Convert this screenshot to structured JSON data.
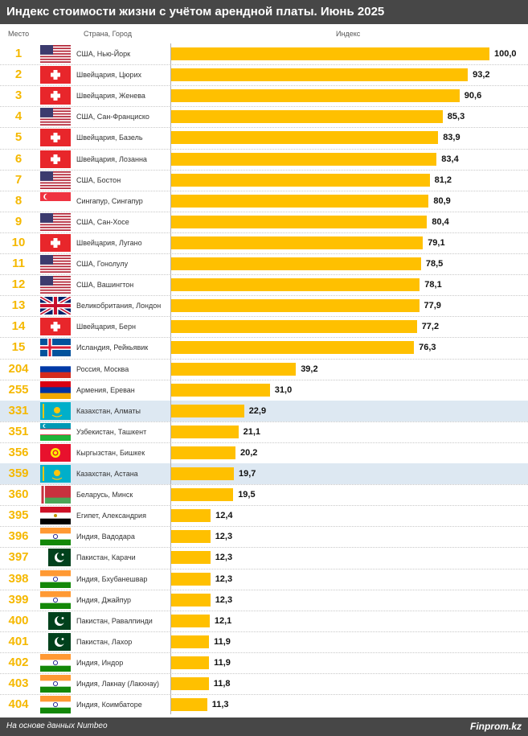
{
  "title": "Индекс стоимости жизни с учётом арендной платы. Июнь 2025",
  "headers": {
    "rank": "Место",
    "city": "Страна, Город",
    "index": "Индекс"
  },
  "footer": {
    "source": "На основе данных Numbeo",
    "brand": "Finprom.kz"
  },
  "colors": {
    "bar": "#ffc000",
    "rank": "#f5b800",
    "highlight": "#dde8f2",
    "header_bg": "#474747"
  },
  "chart_data": {
    "type": "bar",
    "orientation": "horizontal",
    "xlim": [
      0,
      100
    ],
    "rows": [
      {
        "rank": "1",
        "city": "США, Нью-Йорк",
        "value": 100.0,
        "label": "100,0",
        "flag": "usa-flag-icon"
      },
      {
        "rank": "2",
        "city": "Швейцария, Цюрих",
        "value": 93.2,
        "label": "93,2",
        "flag": "switzerland-flag-icon"
      },
      {
        "rank": "3",
        "city": "Швейцария, Женева",
        "value": 90.6,
        "label": "90,6",
        "flag": "switzerland-flag-icon"
      },
      {
        "rank": "4",
        "city": "США, Сан-Франциско",
        "value": 85.3,
        "label": "85,3",
        "flag": "usa-flag-icon"
      },
      {
        "rank": "5",
        "city": "Швейцария, Базель",
        "value": 83.9,
        "label": "83,9",
        "flag": "switzerland-flag-icon"
      },
      {
        "rank": "6",
        "city": "Швейцария, Лозанна",
        "value": 83.4,
        "label": "83,4",
        "flag": "switzerland-flag-icon"
      },
      {
        "rank": "7",
        "city": "США, Бостон",
        "value": 81.2,
        "label": "81,2",
        "flag": "usa-flag-icon"
      },
      {
        "rank": "8",
        "city": "Сингапур, Сингапур",
        "value": 80.9,
        "label": "80,9",
        "flag": "singapore-flag-icon"
      },
      {
        "rank": "9",
        "city": "США, Сан-Хосе",
        "value": 80.4,
        "label": "80,4",
        "flag": "usa-flag-icon"
      },
      {
        "rank": "10",
        "city": "Швейцария, Лугано",
        "value": 79.1,
        "label": "79,1",
        "flag": "switzerland-flag-icon"
      },
      {
        "rank": "11",
        "city": "США, Гонолулу",
        "value": 78.5,
        "label": "78,5",
        "flag": "usa-flag-icon"
      },
      {
        "rank": "12",
        "city": "США, Вашингтон",
        "value": 78.1,
        "label": "78,1",
        "flag": "usa-flag-icon"
      },
      {
        "rank": "13",
        "city": "Великобритания, Лондон",
        "value": 77.9,
        "label": "77,9",
        "flag": "uk-flag-icon"
      },
      {
        "rank": "14",
        "city": "Швейцария, Берн",
        "value": 77.2,
        "label": "77,2",
        "flag": "switzerland-flag-icon"
      },
      {
        "rank": "15",
        "city": "Исландия, Рейкьявик",
        "value": 76.3,
        "label": "76,3",
        "flag": "iceland-flag-icon"
      },
      {
        "rank": "204",
        "city": "Россия, Москва",
        "value": 39.2,
        "label": "39,2",
        "flag": "russia-flag-icon"
      },
      {
        "rank": "255",
        "city": "Армения, Ереван",
        "value": 31.0,
        "label": "31,0",
        "flag": "armenia-flag-icon"
      },
      {
        "rank": "331",
        "city": "Казахстан, Алматы",
        "value": 22.9,
        "label": "22,9",
        "flag": "kazakhstan-flag-icon",
        "highlight": true
      },
      {
        "rank": "351",
        "city": "Узбекистан, Ташкент",
        "value": 21.1,
        "label": "21,1",
        "flag": "uzbekistan-flag-icon"
      },
      {
        "rank": "356",
        "city": "Кыргызстан, Бишкек",
        "value": 20.2,
        "label": "20,2",
        "flag": "kyrgyzstan-flag-icon"
      },
      {
        "rank": "359",
        "city": "Казахстан, Астана",
        "value": 19.7,
        "label": "19,7",
        "flag": "kazakhstan-flag-icon",
        "highlight": true
      },
      {
        "rank": "360",
        "city": "Беларусь, Минск",
        "value": 19.5,
        "label": "19,5",
        "flag": "belarus-flag-icon"
      },
      {
        "rank": "395",
        "city": "Египет, Александрия",
        "value": 12.4,
        "label": "12,4",
        "flag": "egypt-flag-icon"
      },
      {
        "rank": "396",
        "city": "Индия, Вадодара",
        "value": 12.3,
        "label": "12,3",
        "flag": "india-flag-icon"
      },
      {
        "rank": "397",
        "city": "Пакистан, Карачи",
        "value": 12.3,
        "label": "12,3",
        "flag": "pakistan-flag-icon"
      },
      {
        "rank": "398",
        "city": "Индия, Бхубанешвар",
        "value": 12.3,
        "label": "12,3",
        "flag": "india-flag-icon"
      },
      {
        "rank": "399",
        "city": "Индия, Джайпур",
        "value": 12.3,
        "label": "12,3",
        "flag": "india-flag-icon"
      },
      {
        "rank": "400",
        "city": "Пакистан, Равалпинди",
        "value": 12.1,
        "label": "12,1",
        "flag": "pakistan-flag-icon"
      },
      {
        "rank": "401",
        "city": "Пакистан, Лахор",
        "value": 11.9,
        "label": "11,9",
        "flag": "pakistan-flag-icon"
      },
      {
        "rank": "402",
        "city": "Индия, Индор",
        "value": 11.9,
        "label": "11,9",
        "flag": "india-flag-icon"
      },
      {
        "rank": "403",
        "city": "Индия, Лакнау (Лакхнау)",
        "value": 11.8,
        "label": "11,8",
        "flag": "india-flag-icon"
      },
      {
        "rank": "404",
        "city": "Индия, Коимбаторе",
        "value": 11.3,
        "label": "11,3",
        "flag": "india-flag-icon"
      }
    ]
  }
}
